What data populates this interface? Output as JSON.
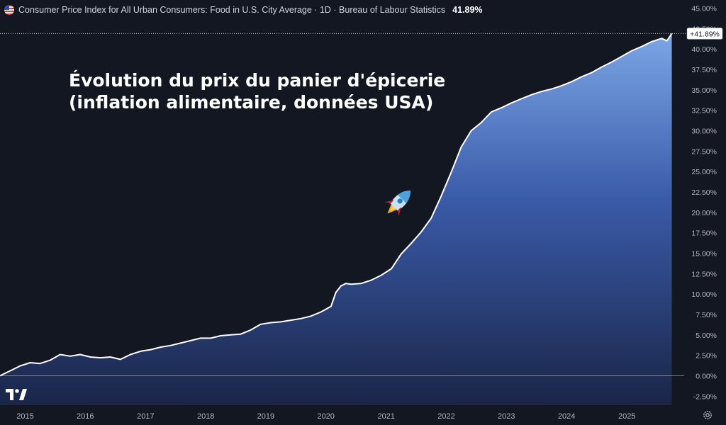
{
  "header": {
    "title": "Consumer Price Index for All Urban Consumers: Food in U.S. City Average · 1D · Bureau of Labour Statistics",
    "value": "41.89%",
    "flag_icon": "us-flag-icon"
  },
  "annotation": {
    "line1": "Évolution du prix du panier d'épicerie",
    "line2": "(inflation alimentaire, données USA)",
    "icon": "rocket-icon"
  },
  "price_label": "+41.89%",
  "colors": {
    "background": "#131722",
    "line": "#ffffff",
    "area_top": "#7ba6e6",
    "area_bottom": "#1a2548",
    "zero_line": "#c9ccd4"
  },
  "chart_data": {
    "type": "area",
    "x": [
      "2014-08",
      "2014-10",
      "2014-12",
      "2015-02",
      "2015-04",
      "2015-06",
      "2015-08",
      "2015-10",
      "2015-12",
      "2016-02",
      "2016-04",
      "2016-06",
      "2016-08",
      "2016-10",
      "2016-12",
      "2017-02",
      "2017-04",
      "2017-06",
      "2017-08",
      "2017-10",
      "2017-12",
      "2018-02",
      "2018-04",
      "2018-06",
      "2018-08",
      "2018-10",
      "2018-12",
      "2019-02",
      "2019-04",
      "2019-06",
      "2019-08",
      "2019-10",
      "2019-12",
      "2020-02",
      "2020-03",
      "2020-04",
      "2020-05",
      "2020-06",
      "2020-08",
      "2020-10",
      "2020-12",
      "2021-02",
      "2021-04",
      "2021-06",
      "2021-08",
      "2021-10",
      "2021-12",
      "2022-02",
      "2022-04",
      "2022-06",
      "2022-08",
      "2022-10",
      "2022-12",
      "2023-02",
      "2023-04",
      "2023-06",
      "2023-08",
      "2023-10",
      "2023-12",
      "2024-02",
      "2024-04",
      "2024-06",
      "2024-08",
      "2024-10",
      "2024-12",
      "2025-02",
      "2025-04",
      "2025-06",
      "2025-08",
      "2025-09",
      "2025-10"
    ],
    "y": [
      0.0,
      0.6,
      1.2,
      1.6,
      1.5,
      1.9,
      2.6,
      2.4,
      2.6,
      2.3,
      2.2,
      2.3,
      2.0,
      2.6,
      3.0,
      3.2,
      3.5,
      3.7,
      4.0,
      4.3,
      4.6,
      4.6,
      4.9,
      5.0,
      5.1,
      5.6,
      6.3,
      6.5,
      6.6,
      6.8,
      7.0,
      7.3,
      7.8,
      8.5,
      10.2,
      11.0,
      11.3,
      11.2,
      11.3,
      11.7,
      12.3,
      13.1,
      14.9,
      16.2,
      17.6,
      19.3,
      22.0,
      25.0,
      28.0,
      30.0,
      31.0,
      32.3,
      32.8,
      33.4,
      33.9,
      34.4,
      34.8,
      35.1,
      35.5,
      36.0,
      36.6,
      37.1,
      37.8,
      38.4,
      39.1,
      39.8,
      40.3,
      40.9,
      41.3,
      41.0,
      41.89
    ],
    "xticks": [
      "2015",
      "2016",
      "2017",
      "2018",
      "2019",
      "2020",
      "2021",
      "2022",
      "2023",
      "2024",
      "2025"
    ],
    "yticks": [
      "-2.50%",
      "0.00%",
      "2.50%",
      "5.00%",
      "7.50%",
      "10.00%",
      "12.50%",
      "15.00%",
      "17.50%",
      "20.00%",
      "22.50%",
      "25.00%",
      "27.50%",
      "30.00%",
      "32.50%",
      "35.00%",
      "37.50%",
      "40.00%",
      "42.50%",
      "45.00%"
    ],
    "ylim": [
      -3.6,
      46
    ],
    "last_value": 41.89,
    "grid": false
  }
}
